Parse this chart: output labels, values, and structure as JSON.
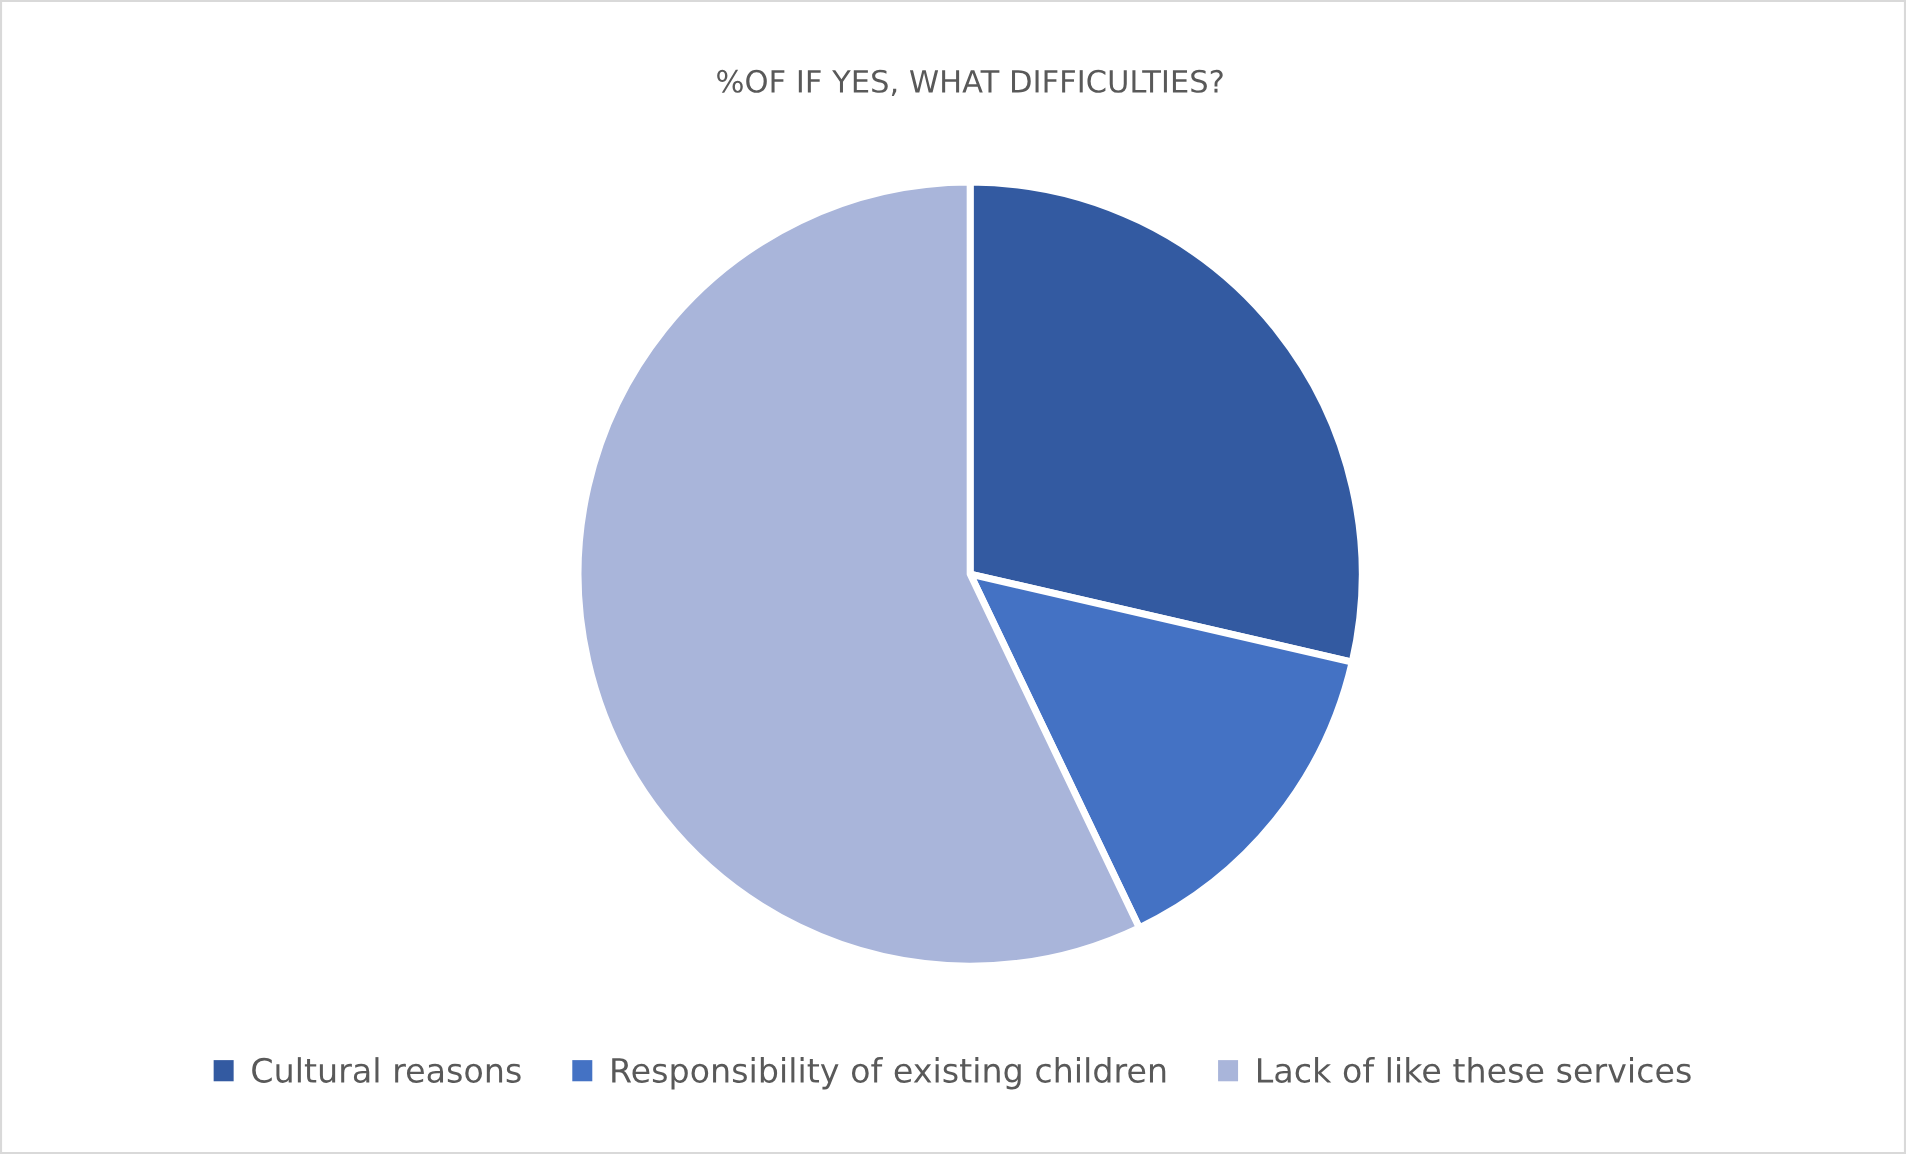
{
  "chart_data": {
    "type": "pie",
    "title": "%OF IF YES, WHAT DIFFICULTIES?",
    "categories": [
      "Cultural reasons",
      "Responsibility of existing children",
      "Lack of like these services"
    ],
    "values": [
      28.6,
      14.3,
      57.1
    ],
    "colors": [
      "#335aa1",
      "#4472c4",
      "#a9b5da"
    ],
    "legend": "bottom"
  }
}
